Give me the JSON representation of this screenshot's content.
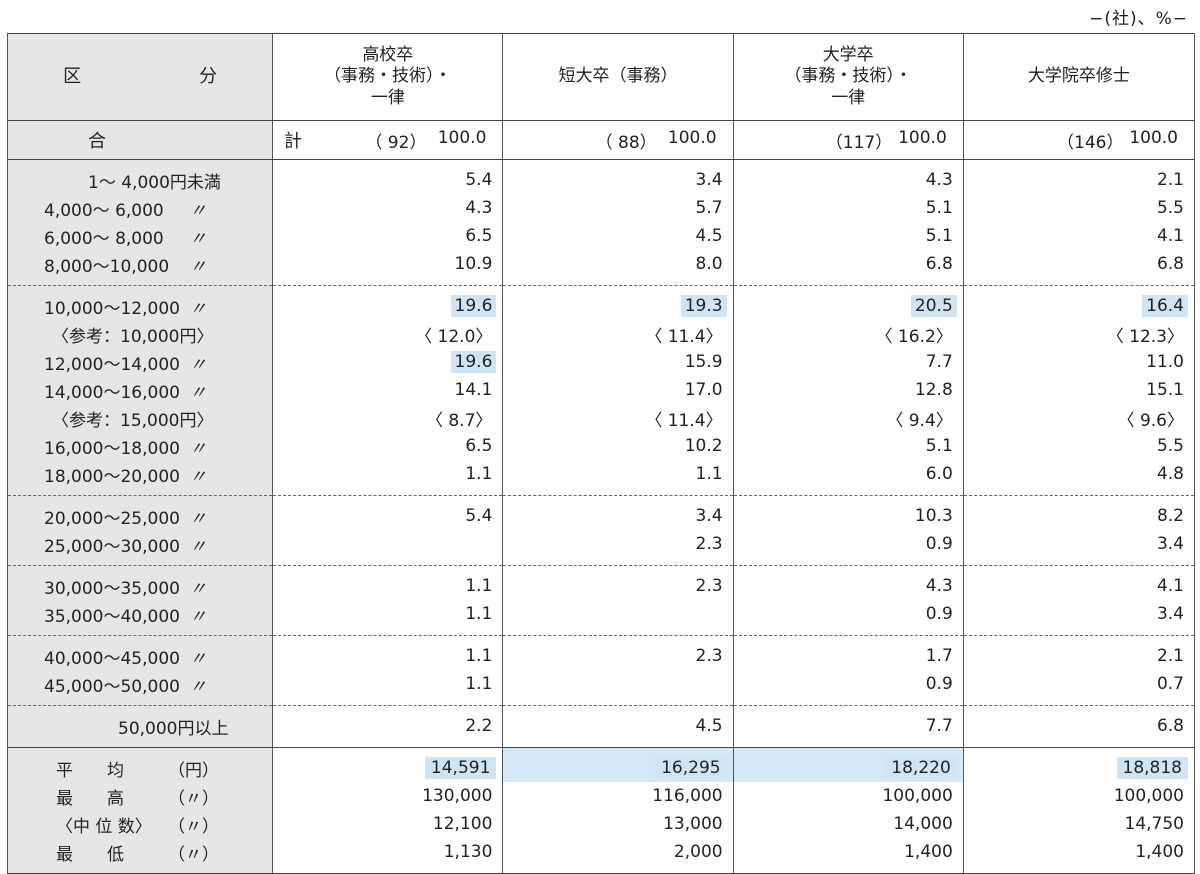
{
  "unit": "−(社)、%−",
  "header": {
    "kubun": "区　分",
    "cols": [
      [
        "高校卒",
        "（事務・技術）・",
        "一律"
      ],
      [
        "短大卒（事務）"
      ],
      [
        "大学卒",
        "（事務・技術）・",
        "一律"
      ],
      [
        "大学院卒修士"
      ]
    ]
  },
  "total": {
    "label": "合　計",
    "counts": [
      "（ 92）",
      "（ 88）",
      "（117）",
      "（146）"
    ],
    "values": [
      "100.0",
      "100.0",
      "100.0",
      "100.0"
    ]
  },
  "groups": [
    [
      {
        "range": "1〜 4,000円未満",
        "ditto": "",
        "vals": [
          "5.4",
          "3.4",
          "4.3",
          "2.1"
        ]
      },
      {
        "range": "4,000〜 6,000",
        "ditto": "〃",
        "vals": [
          "4.3",
          "5.7",
          "5.1",
          "5.5"
        ]
      },
      {
        "range": "6,000〜 8,000",
        "ditto": "〃",
        "vals": [
          "6.5",
          "4.5",
          "5.1",
          "4.1"
        ]
      },
      {
        "range": "8,000〜10,000",
        "ditto": "〃",
        "vals": [
          "10.9",
          "8.0",
          "6.8",
          "6.8"
        ]
      }
    ],
    [
      {
        "range": "10,000〜12,000",
        "ditto": "〃",
        "vals": [
          "19.6",
          "19.3",
          "20.5",
          "16.4"
        ],
        "hl": [
          true,
          true,
          true,
          true
        ]
      },
      {
        "range": "〈参考：10,000円〉",
        "ref": true,
        "vals": [
          "〈 12.0〉",
          "〈 11.4〉",
          "〈 16.2〉",
          "〈 12.3〉"
        ]
      },
      {
        "range": "12,000〜14,000",
        "ditto": "〃",
        "vals": [
          "19.6",
          "15.9",
          "7.7",
          "11.0"
        ],
        "hl": [
          true,
          false,
          false,
          false
        ]
      },
      {
        "range": "14,000〜16,000",
        "ditto": "〃",
        "vals": [
          "14.1",
          "17.0",
          "12.8",
          "15.1"
        ]
      },
      {
        "range": "〈参考：15,000円〉",
        "ref": true,
        "vals": [
          "〈 8.7〉",
          "〈 11.4〉",
          "〈 9.4〉",
          "〈 9.6〉"
        ]
      },
      {
        "range": "16,000〜18,000",
        "ditto": "〃",
        "vals": [
          "6.5",
          "10.2",
          "5.1",
          "5.5"
        ]
      },
      {
        "range": "18,000〜20,000",
        "ditto": "〃",
        "vals": [
          "1.1",
          "1.1",
          "6.0",
          "4.8"
        ]
      }
    ],
    [
      {
        "range": "20,000〜25,000",
        "ditto": "〃",
        "vals": [
          "5.4",
          "3.4",
          "10.3",
          "8.2"
        ]
      },
      {
        "range": "25,000〜30,000",
        "ditto": "〃",
        "vals": [
          "",
          "2.3",
          "0.9",
          "3.4"
        ]
      }
    ],
    [
      {
        "range": "30,000〜35,000",
        "ditto": "〃",
        "vals": [
          "1.1",
          "2.3",
          "4.3",
          "4.1"
        ]
      },
      {
        "range": "35,000〜40,000",
        "ditto": "〃",
        "vals": [
          "1.1",
          "",
          "0.9",
          "3.4"
        ]
      }
    ],
    [
      {
        "range": "40,000〜45,000",
        "ditto": "〃",
        "vals": [
          "1.1",
          "2.3",
          "1.7",
          "2.1"
        ]
      },
      {
        "range": "45,000〜50,000",
        "ditto": "〃",
        "vals": [
          "1.1",
          "",
          "0.9",
          "0.7"
        ]
      }
    ],
    [
      {
        "range": "50,000円以上",
        "over": true,
        "vals": [
          "2.2",
          "4.5",
          "7.7",
          "6.8"
        ]
      }
    ]
  ],
  "stats": [
    {
      "a": "平　　均",
      "b": "（円）",
      "vals": [
        "14,591",
        "16,295",
        "18,220",
        "18,818"
      ],
      "avg": true
    },
    {
      "a": "最　　高",
      "b": "（〃）",
      "vals": [
        "130,000",
        "116,000",
        "100,000",
        "100,000"
      ]
    },
    {
      "a": "〈中 位 数〉",
      "b": "（〃）",
      "vals": [
        "12,100",
        "13,000",
        "14,000",
        "14,750"
      ]
    },
    {
      "a": "最　　低",
      "b": "（〃）",
      "vals": [
        "1,130",
        "2,000",
        "1,400",
        "1,400"
      ]
    }
  ],
  "colors": {
    "label_bg": "#e6e6e6",
    "highlight": "#cfe4f4"
  }
}
